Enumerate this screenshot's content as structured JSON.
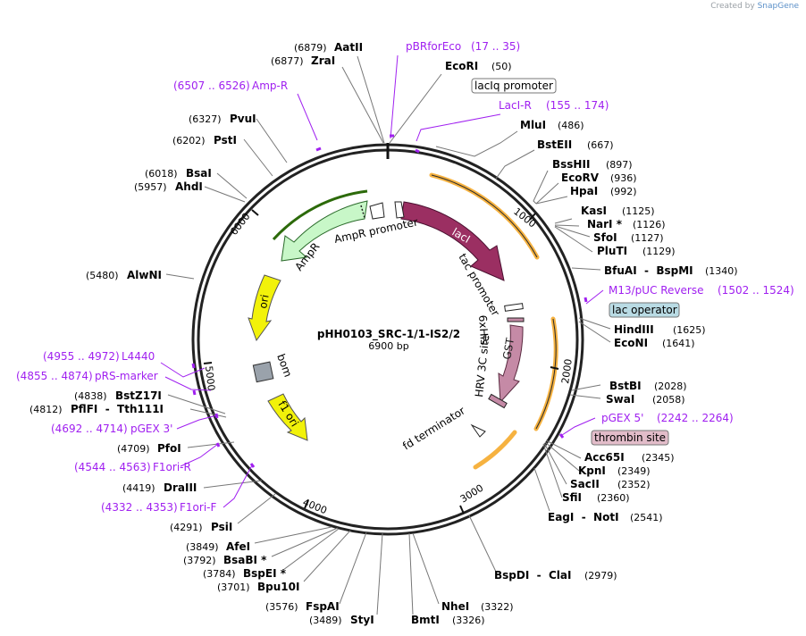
{
  "app": {
    "credit_prefix": "Created by",
    "credit_brand": "SnapGene"
  },
  "plasmid": {
    "name": "pHH0103_SRC-1/1-IS2/2",
    "size_label": "6900 bp",
    "length": 6900
  },
  "ticks": [
    "1000",
    "2000",
    "3000",
    "4000",
    "5000",
    "6000"
  ],
  "sites": [
    {
      "name": "AatII",
      "pos": "(6879)"
    },
    {
      "name": "ZraI",
      "pos": "(6877)"
    },
    {
      "name": "EcoRI",
      "pos": "(50)"
    },
    {
      "name": "MluI",
      "pos": "(486)"
    },
    {
      "name": "BstEII",
      "pos": "(667)"
    },
    {
      "name": "BssHII",
      "pos": "(897)"
    },
    {
      "name": "EcoRV",
      "pos": "(936)"
    },
    {
      "name": "HpaI",
      "pos": "(992)"
    },
    {
      "name": "KasI",
      "pos": "(1125)"
    },
    {
      "name": "NarI *",
      "pos": "(1126)"
    },
    {
      "name": "SfoI",
      "pos": "(1127)"
    },
    {
      "name": "PluTI",
      "pos": "(1129)"
    },
    {
      "name": "BfuAI  -  BspMI",
      "pos": "(1340)"
    },
    {
      "name": "HindIII",
      "pos": "(1625)"
    },
    {
      "name": "EcoNI",
      "pos": "(1641)"
    },
    {
      "name": "BstBI",
      "pos": "(2028)"
    },
    {
      "name": "SwaI",
      "pos": "(2058)"
    },
    {
      "name": "Acc65I",
      "pos": "(2345)"
    },
    {
      "name": "KpnI",
      "pos": "(2349)"
    },
    {
      "name": "SacII",
      "pos": "(2352)"
    },
    {
      "name": "SfiI",
      "pos": "(2360)"
    },
    {
      "name": "EagI  -  NotI",
      "pos": "(2541)"
    },
    {
      "name": "BspDI  -  ClaI",
      "pos": "(2979)"
    },
    {
      "name": "NheI",
      "pos": "(3322)"
    },
    {
      "name": "BmtI",
      "pos": "(3326)"
    },
    {
      "name": "StyI",
      "pos": "(3489)"
    },
    {
      "name": "FspAI",
      "pos": "(3576)"
    },
    {
      "name": "Bpu10I",
      "pos": "(3701)"
    },
    {
      "name": "BspEI *",
      "pos": "(3784)"
    },
    {
      "name": "BsaBI *",
      "pos": "(3792)"
    },
    {
      "name": "AfeI",
      "pos": "(3849)"
    },
    {
      "name": "PsiI",
      "pos": "(4291)"
    },
    {
      "name": "DraIII",
      "pos": "(4419)"
    },
    {
      "name": "PfoI",
      "pos": "(4709)"
    },
    {
      "name": "PflFI  -  Tth111I",
      "pos": "(4812)"
    },
    {
      "name": "BstZ17I",
      "pos": "(4838)"
    },
    {
      "name": "AlwNI",
      "pos": "(5480)"
    },
    {
      "name": "AhdI",
      "pos": "(5957)"
    },
    {
      "name": "BsaI",
      "pos": "(6018)"
    },
    {
      "name": "PstI",
      "pos": "(6202)"
    },
    {
      "name": "PvuI",
      "pos": "(6327)"
    }
  ],
  "primers": [
    {
      "name": "pBRforEco",
      "range": "(17 .. 35)"
    },
    {
      "name": "LacI-R",
      "range": "(155 .. 174)"
    },
    {
      "name": "M13/pUC Reverse",
      "range": "(1502 .. 1524)"
    },
    {
      "name": "pGEX 5'",
      "range": "(2242 .. 2264)"
    },
    {
      "name": "Amp-R",
      "range": "(6507 .. 6526)"
    },
    {
      "name": "L4440",
      "range": "(4955 .. 4972)"
    },
    {
      "name": "pRS-marker",
      "range": "(4855 .. 4874)"
    },
    {
      "name": "pGEX 3'",
      "range": "(4692 .. 4714)"
    },
    {
      "name": "F1ori-R",
      "range": "(4544 .. 4563)"
    },
    {
      "name": "F1ori-F",
      "range": "(4332 .. 4353)"
    }
  ],
  "boxed_labels": [
    {
      "name": "lacIq promoter"
    },
    {
      "name": "lac operator"
    },
    {
      "name": "thrombin site"
    }
  ],
  "features": [
    {
      "name": "lacI"
    },
    {
      "name": "tac promoter"
    },
    {
      "name": "6xHis"
    },
    {
      "name": "GST"
    },
    {
      "name": "HRV 3C site"
    },
    {
      "name": "fd terminator"
    },
    {
      "name": "AmpR promoter"
    },
    {
      "name": "AmpR"
    },
    {
      "name": "ori"
    },
    {
      "name": "bom"
    },
    {
      "name": "f1 ori"
    }
  ],
  "colors": {
    "backbone": "#1a1a1a",
    "lacI": "#9b2f62",
    "GST": "#c58aa6",
    "AmpR": "#c8f7c8",
    "ori": "#f2f20a",
    "bom": "#9aa2ab",
    "orf_arc": "#f6b240",
    "primer": "#a020f0",
    "lac_operator_box": "#b9dbe4",
    "thrombin_box": "#e2bcc9"
  }
}
